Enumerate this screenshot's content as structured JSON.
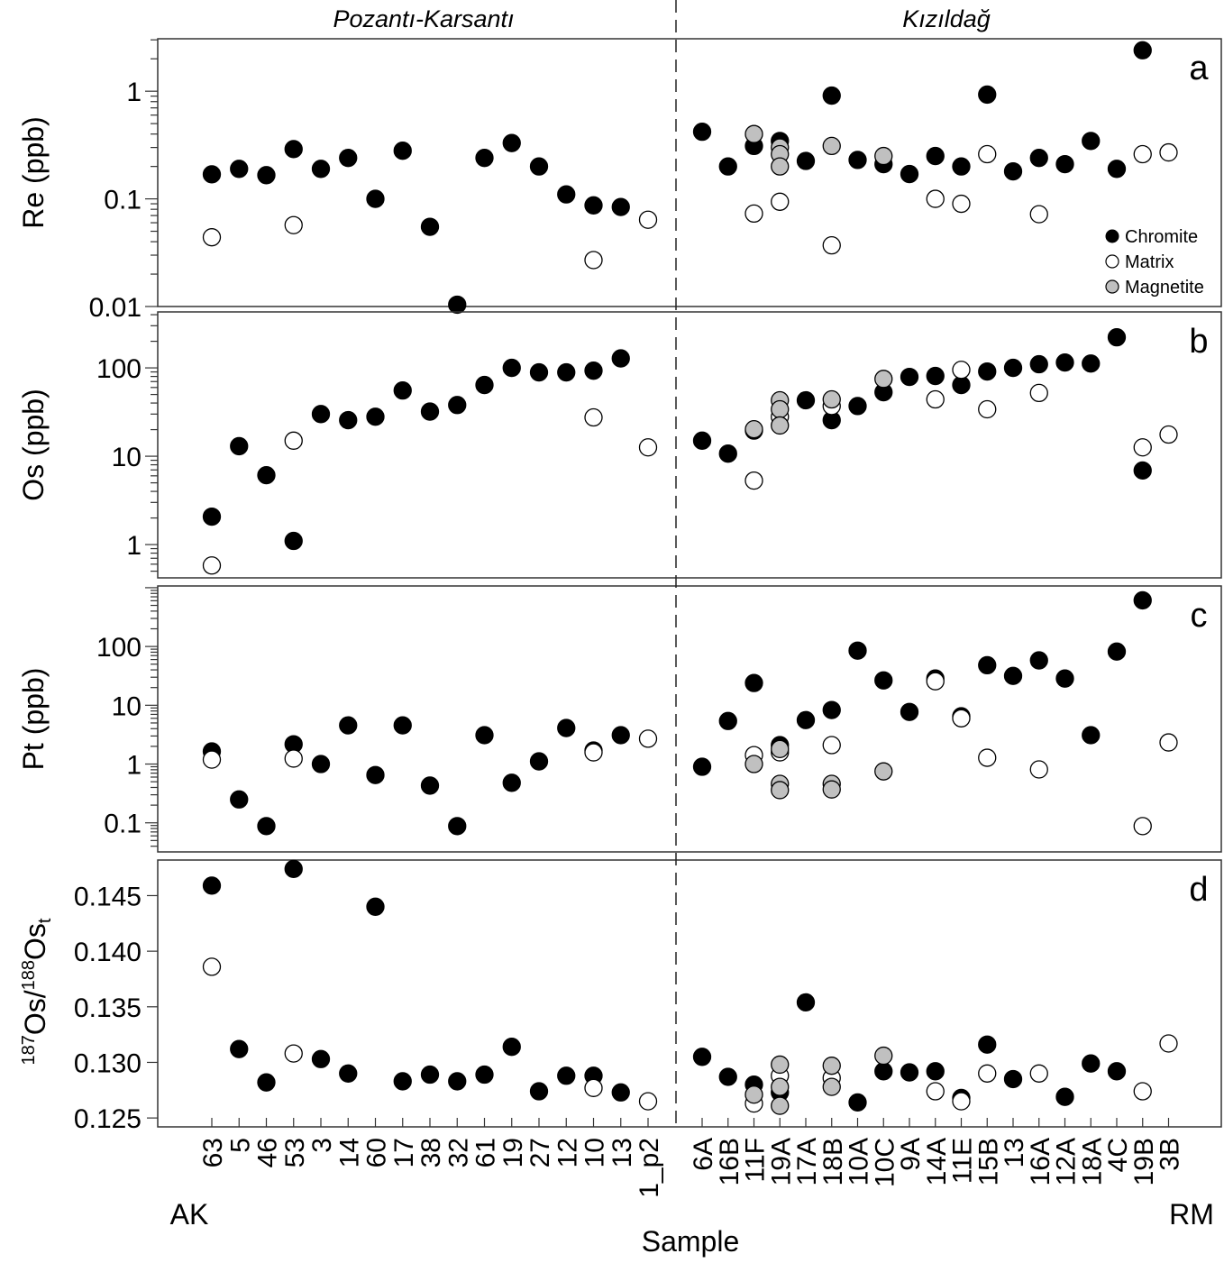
{
  "chart_data": {
    "type": "scatter",
    "regions": [
      "Pozantı-Karsantı",
      "Kızıldağ"
    ],
    "categories": [
      "63",
      "5",
      "46",
      "53",
      "3",
      "14",
      "60",
      "17",
      "38",
      "32",
      "61",
      "19",
      "27",
      "12",
      "10",
      "13",
      "1_p2",
      "6A",
      "16B",
      "11F",
      "19A",
      "17A",
      "18B",
      "10A",
      "10C",
      "9A",
      "14A",
      "11E",
      "15B",
      "13",
      "16A",
      "12A",
      "18A",
      "4C",
      "19B",
      "3B"
    ],
    "category_region_split_after": "1_p2",
    "group_labels": {
      "left": "AK",
      "right": "RM"
    },
    "xlabel": "Sample",
    "legend": {
      "placement": "bottom-right of panel a",
      "entries": [
        {
          "name": "Chromite",
          "color": "#000000"
        },
        {
          "name": "Matrix",
          "color": "#ffffff"
        },
        {
          "name": "Magnetite",
          "color": "#c0c0c0"
        }
      ]
    },
    "panels": [
      {
        "letter": "a",
        "ylabel": "Re (ppb)",
        "scale": "log",
        "ylim": [
          0.01,
          3.07
        ],
        "yticks": [
          "0.01",
          "0.1",
          "1"
        ],
        "series": {
          "Chromite": [
            [
              "63",
              0.169
            ],
            [
              "5",
              0.19
            ],
            [
              "46",
              0.166
            ],
            [
              "53",
              0.29
            ],
            [
              "3",
              0.19
            ],
            [
              "14",
              0.24
            ],
            [
              "60",
              0.1
            ],
            [
              "17",
              0.28
            ],
            [
              "38",
              0.055
            ],
            [
              "32",
              0.0104
            ],
            [
              "61",
              0.24
            ],
            [
              "19",
              0.33
            ],
            [
              "27",
              0.2
            ],
            [
              "12",
              0.11
            ],
            [
              "10",
              0.087
            ],
            [
              "13",
              0.084
            ],
            [
              "6A",
              0.42
            ],
            [
              "16B",
              0.2
            ],
            [
              "11F",
              0.31
            ],
            [
              "19A",
              0.345
            ],
            [
              "17A",
              0.225
            ],
            [
              "18B",
              0.91
            ],
            [
              "10A",
              0.23
            ],
            [
              "10C",
              0.21
            ],
            [
              "9A",
              0.17
            ],
            [
              "14A",
              0.25
            ],
            [
              "11E",
              0.2
            ],
            [
              "15B",
              0.93
            ],
            [
              "13",
              0.18
            ],
            [
              "16A",
              0.24
            ],
            [
              "12A",
              0.21
            ],
            [
              "18A",
              0.345
            ],
            [
              "4C",
              0.19
            ],
            [
              "19B",
              2.4
            ]
          ],
          "Matrix": [
            [
              "63",
              0.044
            ],
            [
              "53",
              0.057
            ],
            [
              "10",
              0.027
            ],
            [
              "1_p2",
              0.064
            ],
            [
              "11F",
              0.073
            ],
            [
              "19A",
              0.094
            ],
            [
              "18B",
              0.037
            ],
            [
              "14A",
              0.1
            ],
            [
              "11E",
              0.09
            ],
            [
              "15B",
              0.26
            ],
            [
              "16A",
              0.072
            ],
            [
              "19B",
              0.26
            ],
            [
              "3B",
              0.27
            ]
          ],
          "Magnetite": [
            [
              "11F",
              0.4
            ],
            [
              "19A",
              0.3
            ],
            [
              "19A",
              0.26
            ],
            [
              "19A",
              0.2
            ],
            [
              "18B",
              0.31
            ],
            [
              "10C",
              0.25
            ]
          ]
        }
      },
      {
        "letter": "b",
        "ylabel": "Os (ppb)",
        "scale": "log",
        "ylim": [
          0.42,
          430
        ],
        "yticks": [
          "1",
          "10",
          "100"
        ],
        "series": {
          "Chromite": [
            [
              "63",
              2.07
            ],
            [
              "5",
              13
            ],
            [
              "46",
              6.1
            ],
            [
              "53",
              1.1
            ],
            [
              "3",
              30
            ],
            [
              "14",
              25.6
            ],
            [
              "60",
              28
            ],
            [
              "17",
              55.5
            ],
            [
              "38",
              32
            ],
            [
              "32",
              38
            ],
            [
              "61",
              64
            ],
            [
              "19",
              100
            ],
            [
              "27",
              89
            ],
            [
              "12",
              89
            ],
            [
              "10",
              93
            ],
            [
              "13",
              128
            ],
            [
              "6A",
              15
            ],
            [
              "16B",
              10.7
            ],
            [
              "11F",
              19.5
            ],
            [
              "17A",
              43
            ],
            [
              "18B",
              25.6
            ],
            [
              "10A",
              37
            ],
            [
              "10C",
              53
            ],
            [
              "9A",
              79
            ],
            [
              "14A",
              81
            ],
            [
              "11E",
              64
            ],
            [
              "15B",
              91
            ],
            [
              "13",
              100
            ],
            [
              "16A",
              110
            ],
            [
              "12A",
              115
            ],
            [
              "18A",
              112
            ],
            [
              "4C",
              222
            ],
            [
              "19B",
              6.9
            ]
          ],
          "Matrix": [
            [
              "63",
              0.58
            ],
            [
              "53",
              15
            ],
            [
              "10",
              27.5
            ],
            [
              "1_p2",
              12.6
            ],
            [
              "11F",
              5.3
            ],
            [
              "19A",
              28
            ],
            [
              "18B",
              37
            ],
            [
              "14A",
              44
            ],
            [
              "11E",
              95
            ],
            [
              "15B",
              34
            ],
            [
              "16A",
              52
            ],
            [
              "19B",
              12.6
            ],
            [
              "3B",
              17.6
            ]
          ],
          "Magnetite": [
            [
              "11F",
              20.2
            ],
            [
              "19A",
              43
            ],
            [
              "19A",
              34
            ],
            [
              "19A",
              22.3
            ],
            [
              "18B",
              44
            ],
            [
              "10C",
              75
            ]
          ]
        }
      },
      {
        "letter": "c",
        "ylabel": "Pt (ppb)",
        "scale": "log",
        "ylim": [
          0.032,
          1070
        ],
        "yticks": [
          "0.1",
          "1",
          "10",
          "100"
        ],
        "series": {
          "Chromite": [
            [
              "63",
              1.64
            ],
            [
              "5",
              0.25
            ],
            [
              "46",
              0.088
            ],
            [
              "53",
              2.17
            ],
            [
              "3",
              1.0
            ],
            [
              "14",
              4.55
            ],
            [
              "60",
              0.65
            ],
            [
              "17",
              4.55
            ],
            [
              "38",
              0.43
            ],
            [
              "32",
              0.088
            ],
            [
              "61",
              3.1
            ],
            [
              "19",
              0.48
            ],
            [
              "27",
              1.11
            ],
            [
              "12",
              4.1
            ],
            [
              "10",
              1.7
            ],
            [
              "13",
              3.1
            ],
            [
              "6A",
              0.9
            ],
            [
              "16B",
              5.4
            ],
            [
              "11F",
              23.9
            ],
            [
              "19A",
              2.1
            ],
            [
              "17A",
              5.6
            ],
            [
              "18B",
              8.3
            ],
            [
              "10A",
              85
            ],
            [
              "10C",
              26.5
            ],
            [
              "9A",
              7.7
            ],
            [
              "14A",
              28.5
            ],
            [
              "11E",
              6.5
            ],
            [
              "15B",
              48
            ],
            [
              "13",
              31.6
            ],
            [
              "16A",
              58
            ],
            [
              "12A",
              28.5
            ],
            [
              "18A",
              3.1
            ],
            [
              "4C",
              82
            ],
            [
              "19B",
              610
            ]
          ],
          "Matrix": [
            [
              "63",
              1.19
            ],
            [
              "53",
              1.24
            ],
            [
              "10",
              1.58
            ],
            [
              "1_p2",
              2.7
            ],
            [
              "11F",
              1.42
            ],
            [
              "19A",
              1.58
            ],
            [
              "18B",
              2.1
            ],
            [
              "14A",
              25.6
            ],
            [
              "11E",
              6.0
            ],
            [
              "15B",
              1.28
            ],
            [
              "16A",
              0.81
            ],
            [
              "19B",
              0.088
            ],
            [
              "3B",
              2.33
            ]
          ],
          "Magnetite": [
            [
              "11F",
              1.0
            ],
            [
              "19A",
              1.8
            ],
            [
              "19A",
              0.46
            ],
            [
              "19A",
              0.36
            ],
            [
              "18B",
              0.46
            ],
            [
              "18B",
              0.37
            ],
            [
              "10C",
              0.75
            ]
          ]
        }
      },
      {
        "letter": "d",
        "ylabel_parts": {
          "sup1": "187",
          "main1": "Os/",
          "sup2": "188",
          "main2": "Os",
          "sub": "t"
        },
        "scale": "linear",
        "ylim": [
          0.1242,
          0.1482
        ],
        "yticks": [
          "0.125",
          "0.130",
          "0.135",
          "0.140",
          "0.145"
        ],
        "series": {
          "Chromite": [
            [
              "63",
              0.1459
            ],
            [
              "5",
              0.1312
            ],
            [
              "46",
              0.1282
            ],
            [
              "53",
              0.1474
            ],
            [
              "3",
              0.1303
            ],
            [
              "14",
              0.129
            ],
            [
              "60",
              0.144
            ],
            [
              "17",
              0.1283
            ],
            [
              "38",
              0.1289
            ],
            [
              "32",
              0.1283
            ],
            [
              "61",
              0.1289
            ],
            [
              "19",
              0.1314
            ],
            [
              "27",
              0.1274
            ],
            [
              "12",
              0.1288
            ],
            [
              "10",
              0.1288
            ],
            [
              "13",
              0.1273
            ],
            [
              "6A",
              0.1305
            ],
            [
              "16B",
              0.1287
            ],
            [
              "11F",
              0.128
            ],
            [
              "19A",
              0.1273
            ],
            [
              "17A",
              0.1354
            ],
            [
              "10A",
              0.1264
            ],
            [
              "10C",
              0.1292
            ],
            [
              "9A",
              0.1291
            ],
            [
              "14A",
              0.1292
            ],
            [
              "11E",
              0.1268
            ],
            [
              "15B",
              0.1316
            ],
            [
              "13",
              0.1285
            ],
            [
              "12A",
              0.1269
            ],
            [
              "18A",
              0.1299
            ],
            [
              "4C",
              0.1292
            ]
          ],
          "Matrix": [
            [
              "63",
              0.1386
            ],
            [
              "53",
              0.1308
            ],
            [
              "10",
              0.1277
            ],
            [
              "1_p2",
              0.1265
            ],
            [
              "11F",
              0.1263
            ],
            [
              "19A",
              0.1288
            ],
            [
              "18B",
              0.1286
            ],
            [
              "14A",
              0.1274
            ],
            [
              "11E",
              0.1265
            ],
            [
              "15B",
              0.129
            ],
            [
              "16A",
              0.129
            ],
            [
              "19B",
              0.1274
            ],
            [
              "3B",
              0.1317
            ]
          ],
          "Magnetite": [
            [
              "11F",
              0.1271
            ],
            [
              "19A",
              0.1298
            ],
            [
              "19A",
              0.1278
            ],
            [
              "19A",
              0.1261
            ],
            [
              "18B",
              0.1297
            ],
            [
              "18B",
              0.1278
            ],
            [
              "10C",
              0.1306
            ]
          ]
        }
      }
    ]
  }
}
